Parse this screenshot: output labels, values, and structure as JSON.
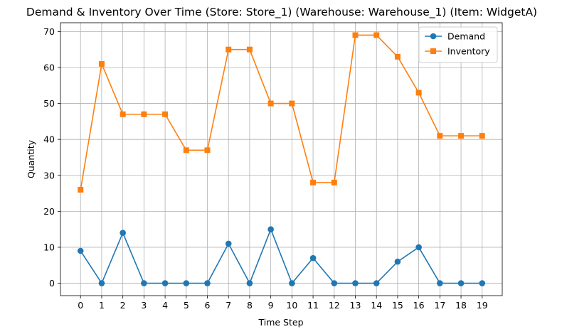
{
  "chart_data": {
    "type": "line",
    "title": "Demand & Inventory Over Time (Store: Store_1) (Warehouse: Warehouse_1) (Item: WidgetA)",
    "xlabel": "Time Step",
    "ylabel": "Quantity",
    "x": [
      0,
      1,
      2,
      3,
      4,
      5,
      6,
      7,
      8,
      9,
      10,
      11,
      12,
      13,
      14,
      15,
      16,
      17,
      18,
      19
    ],
    "x_tick_labels": [
      "0",
      "1",
      "2",
      "3",
      "4",
      "5",
      "6",
      "7",
      "8",
      "9",
      "10",
      "11",
      "12",
      "13",
      "14",
      "15",
      "16",
      "17",
      "18",
      "19"
    ],
    "xlim": [
      -0.95,
      19.95
    ],
    "ylim": [
      -3.45,
      72.45
    ],
    "y_ticks": [
      0,
      10,
      20,
      30,
      40,
      50,
      60,
      70
    ],
    "y_tick_labels": [
      "0",
      "10",
      "20",
      "30",
      "40",
      "50",
      "60",
      "70"
    ],
    "grid": true,
    "legend_position": "top-right",
    "series": [
      {
        "name": "Demand",
        "color": "#1f77b4",
        "marker": "circle",
        "values": [
          9,
          0,
          14,
          0,
          0,
          0,
          0,
          11,
          0,
          15,
          0,
          7,
          0,
          0,
          0,
          6,
          10,
          0,
          0,
          0
        ]
      },
      {
        "name": "Inventory",
        "color": "#ff7f0e",
        "marker": "square",
        "values": [
          26,
          61,
          47,
          47,
          47,
          37,
          37,
          65,
          65,
          50,
          50,
          28,
          28,
          69,
          69,
          63,
          53,
          41,
          41,
          41
        ]
      }
    ]
  }
}
